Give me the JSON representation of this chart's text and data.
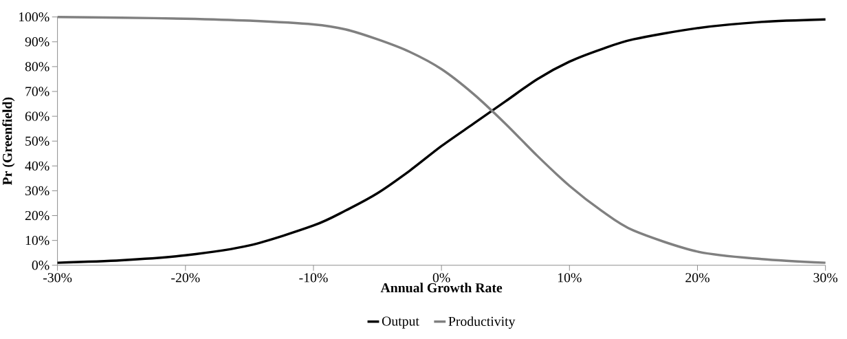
{
  "chart_data": {
    "type": "line",
    "xlabel": "Annual Growth Rate",
    "ylabel": "Pr (Greenfield)",
    "xlim": [
      -30,
      30
    ],
    "ylim": [
      0,
      100
    ],
    "xticks": [
      {
        "value": -30,
        "label": "-30%"
      },
      {
        "value": -20,
        "label": "-20%"
      },
      {
        "value": -10,
        "label": "-10%"
      },
      {
        "value": 0,
        "label": "0%"
      },
      {
        "value": 10,
        "label": "10%"
      },
      {
        "value": 20,
        "label": "20%"
      },
      {
        "value": 30,
        "label": "30%"
      }
    ],
    "yticks": [
      {
        "value": 0,
        "label": "0%"
      },
      {
        "value": 10,
        "label": "10%"
      },
      {
        "value": 20,
        "label": "20%"
      },
      {
        "value": 30,
        "label": "30%"
      },
      {
        "value": 40,
        "label": "40%"
      },
      {
        "value": 50,
        "label": "50%"
      },
      {
        "value": 60,
        "label": "60%"
      },
      {
        "value": 70,
        "label": "70%"
      },
      {
        "value": 80,
        "label": "80%"
      },
      {
        "value": 90,
        "label": "90%"
      },
      {
        "value": 100,
        "label": "100%"
      }
    ],
    "x": [
      -30,
      -25,
      -20,
      -15,
      -10,
      -7.5,
      -5,
      -2.5,
      0,
      2.5,
      5,
      7.5,
      10,
      12.5,
      15,
      20,
      25,
      30
    ],
    "series": [
      {
        "name": "Output",
        "color": "#000000",
        "values": [
          1,
          2,
          4,
          8,
          16,
          22,
          29,
          38,
          48,
          57,
          66,
          75,
          82,
          87,
          91,
          95.5,
          98,
          99
        ]
      },
      {
        "name": "Productivity",
        "color": "#808080",
        "values": [
          100,
          99.7,
          99.3,
          98.5,
          97,
          95,
          91,
          86,
          79,
          69,
          57,
          44,
          32,
          22,
          14,
          5.5,
          2.5,
          1
        ]
      }
    ],
    "grid": false,
    "legend": "bottom",
    "marker": "none",
    "line_style": "solid"
  }
}
